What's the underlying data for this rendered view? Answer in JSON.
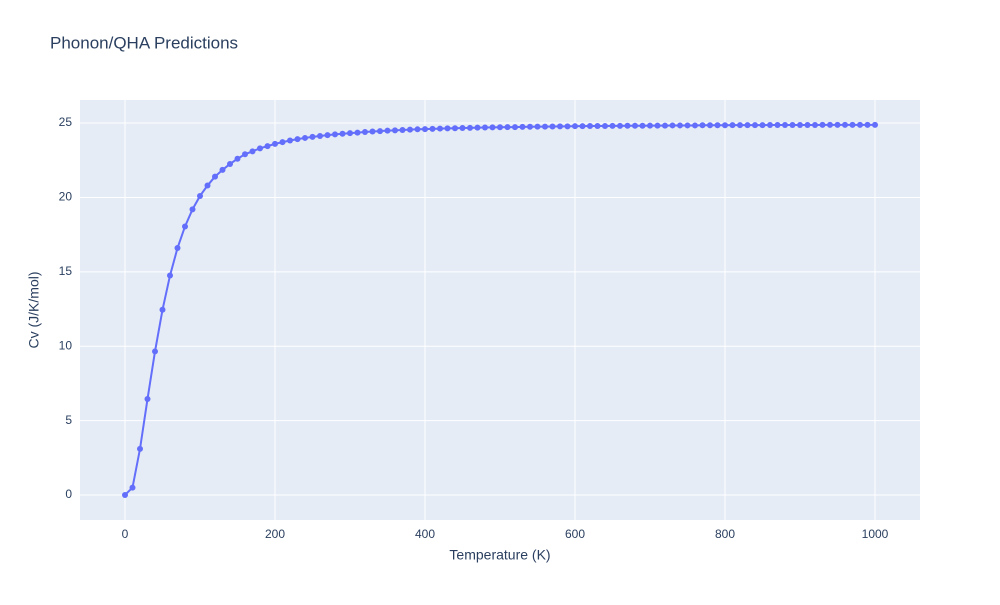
{
  "chart_data": {
    "type": "line",
    "title": "Phonon/QHA Predictions",
    "x_label": "Temperature (K)",
    "y_label": "Cv (J/K/mol)",
    "x": [
      0,
      10,
      20,
      30,
      40,
      50,
      60,
      70,
      80,
      90,
      100,
      110,
      120,
      130,
      140,
      150,
      160,
      170,
      180,
      190,
      200,
      210,
      220,
      230,
      240,
      250,
      260,
      270,
      280,
      290,
      300,
      310,
      320,
      330,
      340,
      350,
      360,
      370,
      380,
      390,
      400,
      410,
      420,
      430,
      440,
      450,
      460,
      470,
      480,
      490,
      500,
      510,
      520,
      530,
      540,
      550,
      560,
      570,
      580,
      590,
      600,
      610,
      620,
      630,
      640,
      650,
      660,
      670,
      680,
      690,
      700,
      710,
      720,
      730,
      740,
      750,
      760,
      770,
      780,
      790,
      800,
      810,
      820,
      830,
      840,
      850,
      860,
      870,
      880,
      890,
      900,
      910,
      920,
      930,
      940,
      950,
      960,
      970,
      980,
      990,
      1000
    ],
    "series": [
      {
        "name": "Cv",
        "color": "#636efa",
        "values": [
          0,
          0.5,
          3.1,
          6.45,
          9.65,
          12.45,
          14.75,
          16.6,
          18.05,
          19.2,
          20.1,
          20.8,
          21.4,
          21.85,
          22.25,
          22.6,
          22.9,
          23.1,
          23.3,
          23.45,
          23.6,
          23.72,
          23.83,
          23.92,
          24.0,
          24.07,
          24.13,
          24.19,
          24.24,
          24.28,
          24.32,
          24.36,
          24.4,
          24.43,
          24.46,
          24.49,
          24.51,
          24.53,
          24.56,
          24.58,
          24.59,
          24.61,
          24.63,
          24.64,
          24.65,
          24.67,
          24.68,
          24.69,
          24.7,
          24.71,
          24.72,
          24.73,
          24.73,
          24.74,
          24.75,
          24.76,
          24.76,
          24.77,
          24.78,
          24.78,
          24.79,
          24.79,
          24.8,
          24.8,
          24.8,
          24.81,
          24.81,
          24.82,
          24.82,
          24.82,
          24.83,
          24.83,
          24.83,
          24.84,
          24.84,
          24.84,
          24.84,
          24.85,
          24.85,
          24.85,
          24.85,
          24.86,
          24.86,
          24.86,
          24.86,
          24.86,
          24.87,
          24.87,
          24.87,
          24.87,
          24.87,
          24.87,
          24.87,
          24.88,
          24.88,
          24.88,
          24.88,
          24.88,
          24.88,
          24.88,
          24.88
        ]
      }
    ],
    "xlim": [
      -60,
      1060
    ],
    "ylim": [
      -1.68,
      26.55
    ],
    "xticks": [
      0,
      200,
      400,
      600,
      800,
      1000
    ],
    "yticks": [
      0,
      5,
      10,
      15,
      20,
      25
    ],
    "grid": true
  }
}
